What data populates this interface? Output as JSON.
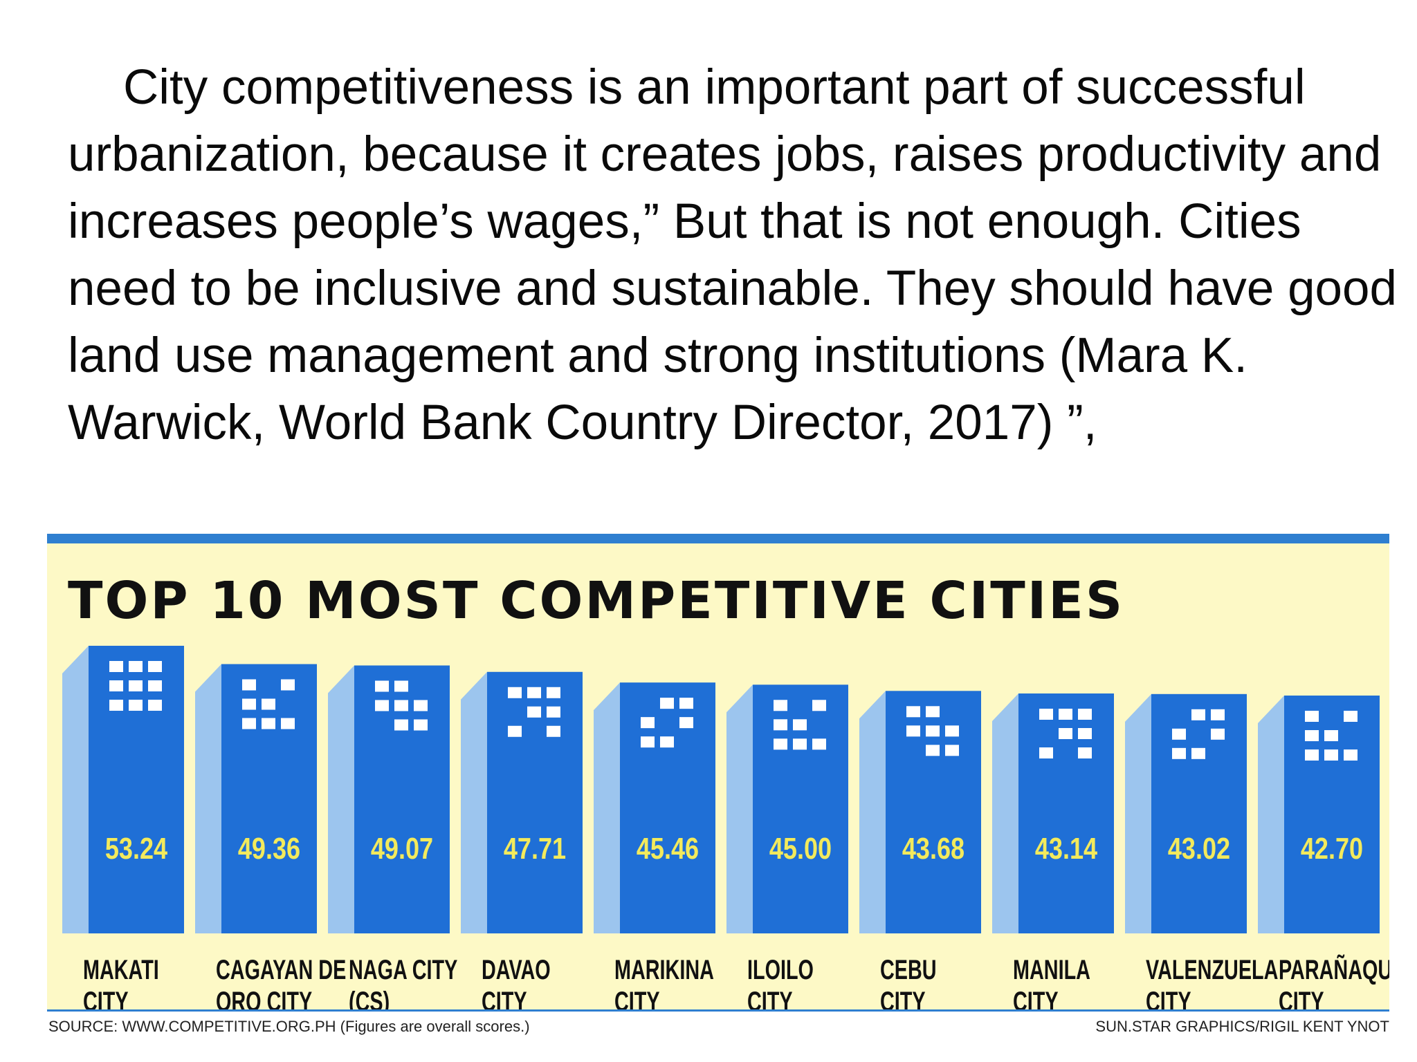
{
  "paragraph": "City competitiveness is an important part of successful urbanization, because it creates jobs, raises productivity and increases people’s wages,” But that is not enough. Cities need to be inclusive and sustainable. They should have good land use management and strong institutions (Mara K. Warwick, World Bank Country Director, 2017) ”,",
  "colors": {
    "background": "#fdf9c6",
    "bar_front": "#1f6fd6",
    "bar_side": "#9cc5ee",
    "value_label": "#f3ea5c",
    "accent": "#2f7fd0"
  },
  "footer": {
    "source": "SOURCE: WWW.COMPETITIVE.ORG.PH (Figures are overall scores.)",
    "credit": "SUN.STAR GRAPHICS/RIGIL KENT YNOT"
  },
  "chart_data": {
    "type": "bar",
    "title": "TOP 10 MOST COMPETITIVE CITIES",
    "categories": [
      [
        "MAKATI",
        "CITY"
      ],
      [
        "CAGAYAN DE",
        "ORO CITY"
      ],
      [
        "NAGA CITY",
        "(CS)"
      ],
      [
        "DAVAO",
        "CITY"
      ],
      [
        "MARIKINA",
        "CITY"
      ],
      [
        "ILOILO",
        "CITY"
      ],
      [
        "CEBU",
        "CITY"
      ],
      [
        "MANILA",
        "CITY"
      ],
      [
        "VALENZUELA",
        "CITY"
      ],
      [
        "PARAÑAQUE",
        "CITY"
      ]
    ],
    "values": [
      53.24,
      49.36,
      49.07,
      47.71,
      45.46,
      45.0,
      43.68,
      43.14,
      43.02,
      42.7
    ],
    "value_labels": [
      "53.24",
      "49.36",
      "49.07",
      "47.71",
      "45.46",
      "45.00",
      "43.68",
      "43.14",
      "43.02",
      "42.70"
    ],
    "xlabel": "",
    "ylabel": "",
    "grid": false,
    "legend": "none"
  }
}
